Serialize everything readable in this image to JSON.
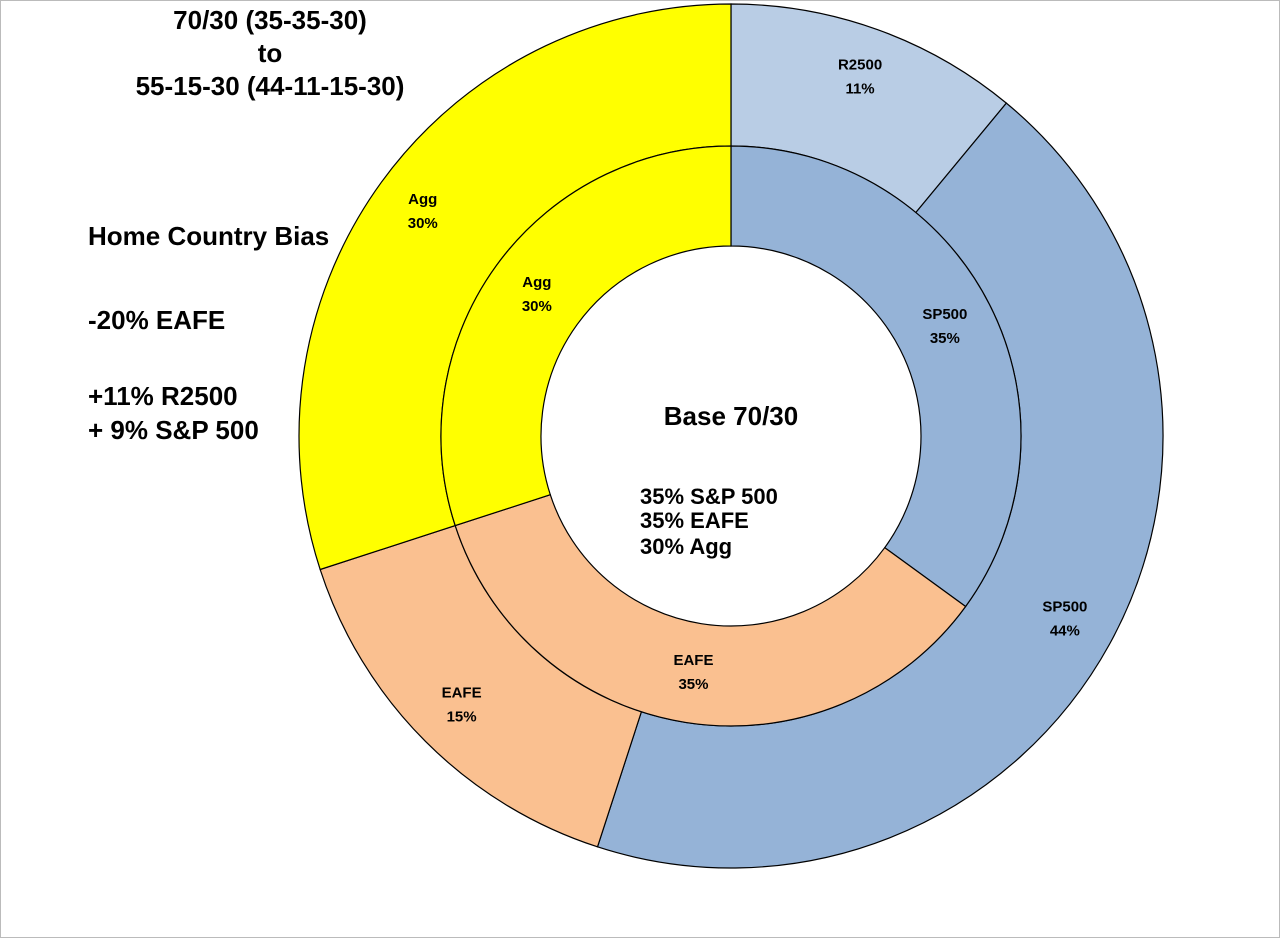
{
  "chart_data": {
    "type": "doughnut",
    "title": [
      "70/30  (35-35-30)",
      "to",
      "55-15-30 (44-11-15-30)"
    ],
    "annotations": [
      "Home Country Bias",
      "-20% EAFE",
      "+11% R2500",
      "+ 9% S&P 500"
    ],
    "center_text": [
      "Base 70/30",
      "35% S&P 500",
      "35% EAFE",
      "30% Agg"
    ],
    "series": [
      {
        "categories": [
          "R2500",
          "SP500",
          "EAFE",
          "Agg"
        ],
        "values": [
          11,
          44,
          15,
          30
        ],
        "value_labels": [
          "11%",
          "44%",
          "15%",
          "30%"
        ],
        "colors": [
          "#b9cde5",
          "#95b3d7",
          "#fac090",
          "#ffff00"
        ]
      },
      {
        "categories": [
          "SP500",
          "EAFE",
          "Agg"
        ],
        "values": [
          35,
          35,
          30
        ],
        "value_labels": [
          "35%",
          "35%",
          "30%"
        ],
        "colors": [
          "#95b3d7",
          "#fac090",
          "#ffff00"
        ]
      }
    ]
  }
}
